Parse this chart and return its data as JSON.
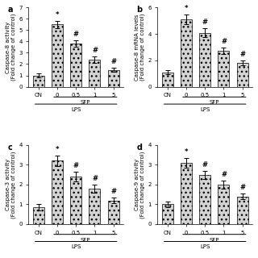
{
  "subplots": [
    {
      "label": "a",
      "ylabel": "Caspase-8 activity\n(Fold change of control)",
      "ylim": [
        0,
        7
      ],
      "yticks": [
        0,
        1,
        2,
        3,
        4,
        5,
        6,
        7
      ],
      "categories": [
        "CN",
        "0",
        "0.5",
        "1",
        "5"
      ],
      "values": [
        1.0,
        5.5,
        3.8,
        2.4,
        1.5
      ],
      "errors": [
        0.15,
        0.35,
        0.3,
        0.3,
        0.2
      ],
      "annotations": [
        "",
        "*",
        "#",
        "#",
        "#"
      ],
      "sfp_span": [
        1,
        4
      ],
      "lps_span": [
        0,
        4
      ]
    },
    {
      "label": "b",
      "ylabel": "Caspase-8 mRNA levels\n(Fold change of control)",
      "ylim": [
        0,
        6
      ],
      "yticks": [
        0,
        2,
        4,
        6
      ],
      "categories": [
        "CN",
        "0",
        "0.5",
        "1",
        "5"
      ],
      "values": [
        1.1,
        5.1,
        4.1,
        2.7,
        1.8
      ],
      "errors": [
        0.15,
        0.35,
        0.35,
        0.25,
        0.2
      ],
      "annotations": [
        "",
        "*",
        "#",
        "#",
        "#"
      ],
      "sfp_span": [
        1,
        4
      ],
      "lps_span": [
        0,
        4
      ]
    },
    {
      "label": "c",
      "ylabel": "Caspase-3 activity\n(Fold change of control)",
      "ylim": [
        0,
        4
      ],
      "yticks": [
        0,
        1,
        2,
        3,
        4
      ],
      "categories": [
        "CN",
        "0",
        "0.5",
        "1",
        "5"
      ],
      "values": [
        0.85,
        3.2,
        2.4,
        1.8,
        1.2
      ],
      "errors": [
        0.15,
        0.25,
        0.25,
        0.2,
        0.15
      ],
      "annotations": [
        "",
        "*",
        "#",
        "#",
        "#"
      ],
      "sfp_span": [
        1,
        4
      ],
      "lps_span": [
        0,
        4
      ]
    },
    {
      "label": "d",
      "ylabel": "Caspase-9 activity\n(Fold change of control)",
      "ylim": [
        0,
        4
      ],
      "yticks": [
        0,
        1,
        2,
        3,
        4
      ],
      "categories": [
        "CN",
        "0",
        "0.5",
        "1",
        "5"
      ],
      "values": [
        1.0,
        3.1,
        2.5,
        2.0,
        1.4
      ],
      "errors": [
        0.15,
        0.25,
        0.2,
        0.2,
        0.15
      ],
      "annotations": [
        "",
        "*",
        "#",
        "#",
        "#"
      ],
      "sfp_span": [
        1,
        4
      ],
      "lps_span": [
        0,
        4
      ]
    }
  ],
  "bar_hatch": "...",
  "background_color": "#ffffff",
  "fontsize_label": 5,
  "fontsize_tick": 5,
  "fontsize_annot": 6
}
